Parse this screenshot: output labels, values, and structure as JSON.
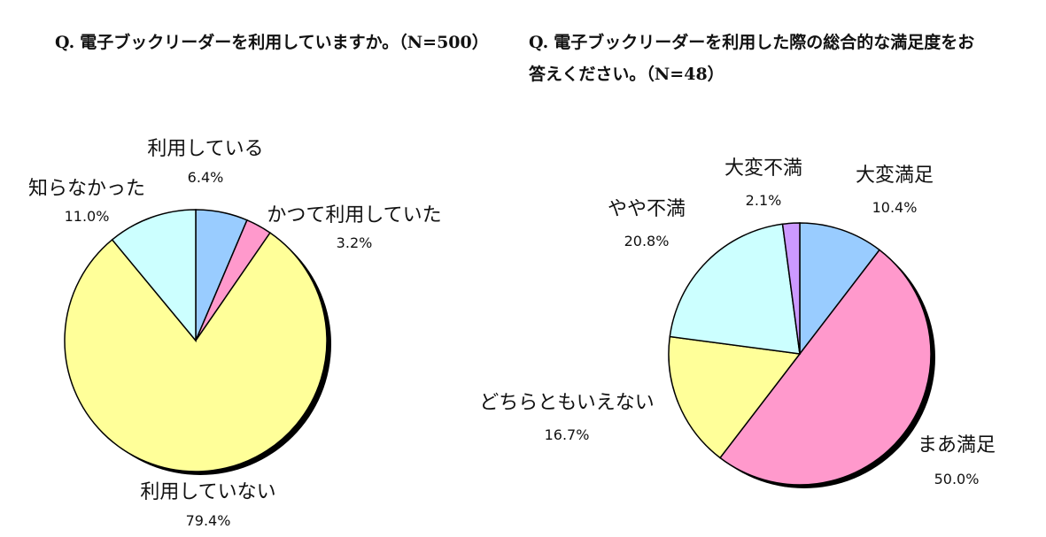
{
  "questions": [
    {
      "prefix": "Q.",
      "text": "電子ブックリーダーを利用していますか。（N=500）"
    },
    {
      "prefix": "Q.",
      "text": "電子ブックリーダーを利用した際の総合的な満足度をお答えください。（N=48）"
    }
  ],
  "chart_data": [
    {
      "type": "pie",
      "title": "",
      "slices": [
        {
          "label": "利用している",
          "value": 6.4,
          "display": "6.4%",
          "color": "#99ccff"
        },
        {
          "label": "かつて利用していた",
          "value": 3.2,
          "display": "3.2%",
          "color": "#ff99cc"
        },
        {
          "label": "利用していない",
          "value": 79.4,
          "display": "79.4%",
          "color": "#ffff99"
        },
        {
          "label": "知らなかった",
          "value": 11.0,
          "display": "11.0%",
          "color": "#ccffff"
        }
      ],
      "legend": "none"
    },
    {
      "type": "pie",
      "title": "",
      "slices": [
        {
          "label": "大変満足",
          "value": 10.4,
          "display": "10.4%",
          "color": "#99ccff"
        },
        {
          "label": "まあ満足",
          "value": 50.0,
          "display": "50.0%",
          "color": "#ff99cc"
        },
        {
          "label": "どちらともいえない",
          "value": 16.7,
          "display": "16.7%",
          "color": "#ffff99"
        },
        {
          "label": "やや不満",
          "value": 20.8,
          "display": "20.8%",
          "color": "#ccffff"
        },
        {
          "label": "大変不満",
          "value": 2.1,
          "display": "2.1%",
          "color": "#cc99ff"
        }
      ],
      "legend": "none"
    }
  ]
}
